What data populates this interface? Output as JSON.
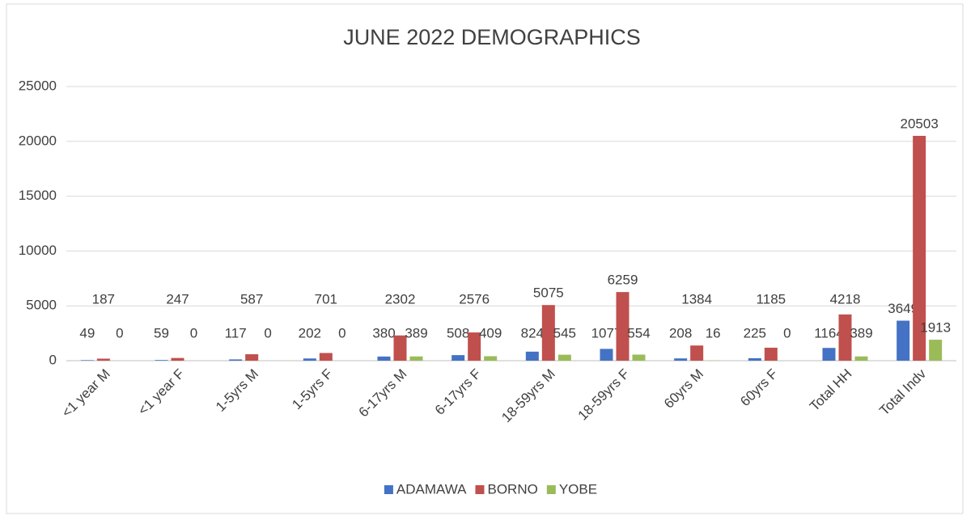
{
  "chart_data": {
    "type": "bar",
    "title": "JUNE 2022 DEMOGRAPHICS",
    "categories": [
      "<1 year M",
      "<1 year F",
      "1-5yrs M",
      "1-5yrs F",
      "6-17yrs M",
      "6-17yrs F",
      "18-59yrs M",
      "18-59yrs F",
      "60yrs M",
      "60yrs F",
      "Total HH",
      "Total Indv"
    ],
    "series": [
      {
        "name": "ADAMAWA",
        "color": "#4472c4",
        "values": [
          49,
          59,
          117,
          202,
          380,
          508,
          824,
          1077,
          208,
          225,
          1164,
          3649
        ]
      },
      {
        "name": "BORNO",
        "color": "#c0504d",
        "values": [
          187,
          247,
          587,
          701,
          2302,
          2576,
          5075,
          6259,
          1384,
          1185,
          4218,
          20503
        ]
      },
      {
        "name": "YOBE",
        "color": "#9bbb59",
        "values": [
          0,
          0,
          0,
          0,
          389,
          409,
          545,
          554,
          16,
          0,
          389,
          1913
        ]
      }
    ],
    "ylim": [
      0,
      25000
    ],
    "yticks": [
      0,
      5000,
      10000,
      15000,
      20000,
      25000
    ],
    "grid": true,
    "legend": "bottom"
  }
}
